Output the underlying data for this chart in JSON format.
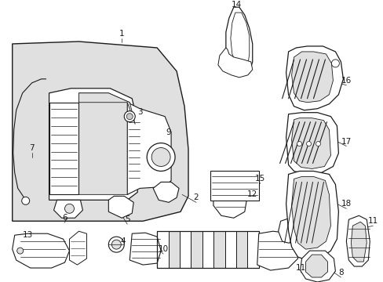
{
  "bg_color": "#ffffff",
  "fig_width": 4.89,
  "fig_height": 3.6,
  "dpi": 100,
  "line_color": "#1a1a1a",
  "fill_light": "#e0e0e0",
  "fill_white": "#ffffff",
  "fill_gray": "#c8c8c8"
}
